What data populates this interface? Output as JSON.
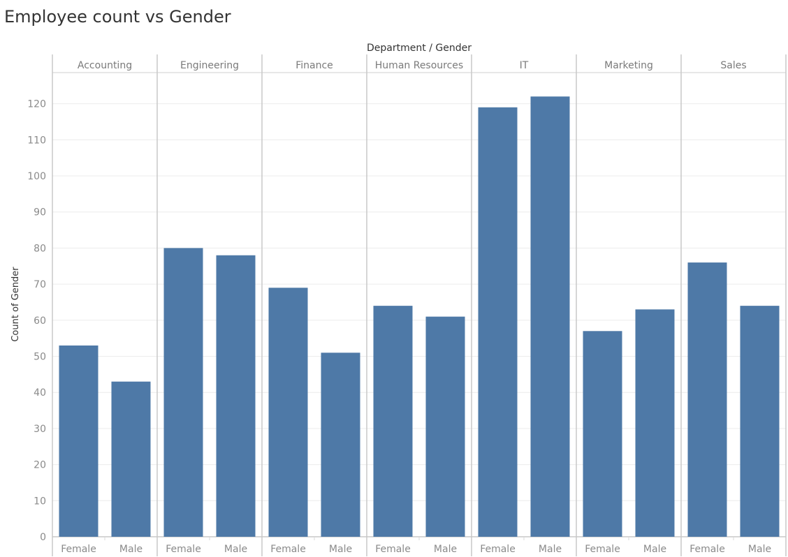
{
  "chart_title": "Employee count vs Gender",
  "chart_data": {
    "type": "bar",
    "title": "Employee count vs Gender",
    "column_header": "Department / Gender",
    "ylabel": "Count of Gender",
    "ylim": [
      0,
      128
    ],
    "yticks": [
      0,
      10,
      20,
      30,
      40,
      50,
      60,
      70,
      80,
      90,
      100,
      110,
      120
    ],
    "grid": true,
    "bar_color": "#4e79a7",
    "groups": [
      {
        "department": "Accounting",
        "bars": [
          {
            "gender": "Female",
            "value": 53
          },
          {
            "gender": "Male",
            "value": 43
          }
        ]
      },
      {
        "department": "Engineering",
        "bars": [
          {
            "gender": "Female",
            "value": 80
          },
          {
            "gender": "Male",
            "value": 78
          }
        ]
      },
      {
        "department": "Finance",
        "bars": [
          {
            "gender": "Female",
            "value": 69
          },
          {
            "gender": "Male",
            "value": 51
          }
        ]
      },
      {
        "department": "Human Resources",
        "bars": [
          {
            "gender": "Female",
            "value": 64
          },
          {
            "gender": "Male",
            "value": 61
          }
        ]
      },
      {
        "department": "IT",
        "bars": [
          {
            "gender": "Female",
            "value": 119
          },
          {
            "gender": "Male",
            "value": 122
          }
        ]
      },
      {
        "department": "Marketing",
        "bars": [
          {
            "gender": "Female",
            "value": 57
          },
          {
            "gender": "Male",
            "value": 63
          }
        ]
      },
      {
        "department": "Sales",
        "bars": [
          {
            "gender": "Female",
            "value": 76
          },
          {
            "gender": "Male",
            "value": 64
          }
        ]
      }
    ]
  }
}
